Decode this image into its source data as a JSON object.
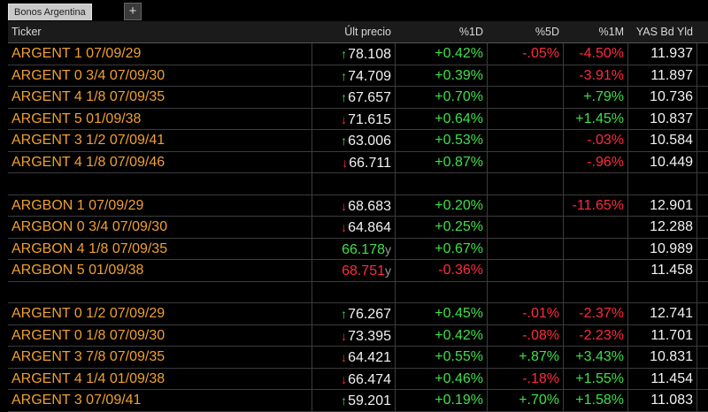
{
  "tabs": [
    {
      "label": "Bonos Argentina"
    }
  ],
  "add_tab_label": "+",
  "columns": {
    "ticker": "Ticker",
    "last": "Últ precio",
    "d1": "%1D",
    "d5": "%5D",
    "m1": "%1M",
    "yld": "YAS Bd Yld"
  },
  "colors": {
    "pos": "#3ee04a",
    "neg": "#ff2b3d",
    "ticker": "#f0a030"
  },
  "rows": [
    {
      "ticker": "ARGENT 1 07/09/29",
      "dir": "up",
      "last": "78.108",
      "last_color": "wht",
      "d1": "+0.42%",
      "d5": "-.05%",
      "m1": "-4.50%",
      "yld": "11.937"
    },
    {
      "ticker": "ARGENT 0 3/4 07/09/30",
      "dir": "up",
      "last": "74.709",
      "last_color": "wht",
      "d1": "+0.39%",
      "d5": "",
      "m1": "-3.91%",
      "yld": "11.897"
    },
    {
      "ticker": "ARGENT 4 1/8 07/09/35",
      "dir": "up",
      "last": "67.657",
      "last_color": "wht",
      "d1": "+0.70%",
      "d5": "",
      "m1": "+.79%",
      "yld": "10.736"
    },
    {
      "ticker": "ARGENT 5 01/09/38",
      "dir": "down",
      "last": "71.615",
      "last_color": "wht",
      "d1": "+0.64%",
      "d5": "",
      "m1": "+1.45%",
      "yld": "10.837"
    },
    {
      "ticker": "ARGENT 3 1/2 07/09/41",
      "dir": "up",
      "last": "63.006",
      "last_color": "wht",
      "d1": "+0.53%",
      "d5": "",
      "m1": "-.03%",
      "yld": "10.584"
    },
    {
      "ticker": "ARGENT 4 1/8 07/09/46",
      "dir": "down",
      "last": "66.711",
      "last_color": "wht",
      "d1": "+0.87%",
      "d5": "",
      "m1": "-.96%",
      "yld": "10.449"
    },
    {
      "ticker": "",
      "dir": "",
      "last": "",
      "d1": "",
      "d5": "",
      "m1": "",
      "yld": ""
    },
    {
      "ticker": "ARGBON 1 07/09/29",
      "dir": "down",
      "last": "68.683",
      "last_color": "wht",
      "d1": "+0.20%",
      "d5": "",
      "m1": "-11.65%",
      "yld": "12.901"
    },
    {
      "ticker": "ARGBON 0 3/4 07/09/30",
      "dir": "down",
      "last": "64.864",
      "last_color": "wht",
      "d1": "+0.25%",
      "d5": "",
      "m1": "",
      "yld": "12.288"
    },
    {
      "ticker": "ARGBON 4 1/8 07/09/35",
      "dir": "",
      "last": "66.178",
      "last_color": "pos",
      "suffix": "y",
      "d1": "+0.67%",
      "d5": "",
      "m1": "",
      "yld": "10.989"
    },
    {
      "ticker": "ARGBON 5 01/09/38",
      "dir": "",
      "last": "68.751",
      "last_color": "neg",
      "suffix": "y",
      "d1": "-0.36%",
      "d5": "",
      "m1": "",
      "yld": "11.458"
    },
    {
      "ticker": "",
      "dir": "",
      "last": "",
      "d1": "",
      "d5": "",
      "m1": "",
      "yld": ""
    },
    {
      "ticker": "ARGENT 0 1/2 07/09/29",
      "dir": "up",
      "last": "76.267",
      "last_color": "wht",
      "d1": "+0.45%",
      "d5": "-.01%",
      "m1": "-2.37%",
      "yld": "12.741"
    },
    {
      "ticker": "ARGENT 0 1/8 07/09/30",
      "dir": "down",
      "last": "73.395",
      "last_color": "wht",
      "d1": "+0.42%",
      "d5": "-.08%",
      "m1": "-2.23%",
      "yld": "11.701"
    },
    {
      "ticker": "ARGENT 3 7/8 07/09/35",
      "dir": "down",
      "last": "64.421",
      "last_color": "wht",
      "d1": "+0.55%",
      "d5": "+.87%",
      "m1": "+3.43%",
      "yld": "10.831"
    },
    {
      "ticker": "ARGENT 4 1/4 01/09/38",
      "dir": "down",
      "last": "66.474",
      "last_color": "wht",
      "d1": "+0.46%",
      "d5": "-.18%",
      "m1": "+1.55%",
      "yld": "11.454"
    },
    {
      "ticker": "ARGENT 3 07/09/41",
      "dir": "up",
      "last": "59.201",
      "last_color": "wht",
      "d1": "+0.19%",
      "d5": "+.70%",
      "m1": "+1.58%",
      "yld": "11.083"
    }
  ]
}
